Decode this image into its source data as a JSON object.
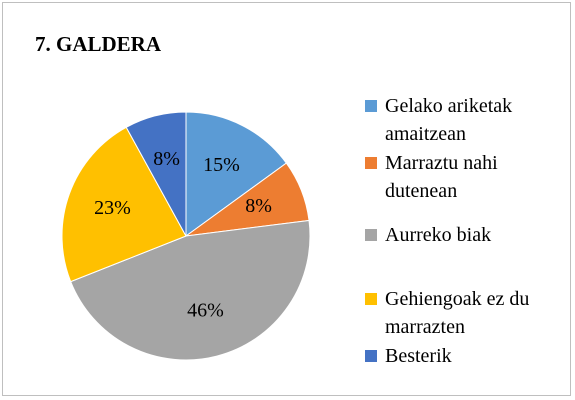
{
  "chart_data": {
    "type": "pie",
    "title": "7. GALDERA",
    "categories": [
      "Gelako ariketak amaitzean",
      "Marraztu nahi dutenean",
      "Aurreko biak",
      "Gehiengoak ez du marrazten",
      "Besterik"
    ],
    "values": [
      15,
      8,
      46,
      23,
      8
    ],
    "value_labels": [
      "15%",
      "8%",
      "46%",
      "23%",
      "8%"
    ],
    "colors": [
      "#5b9bd5",
      "#ed7d31",
      "#a5a5a5",
      "#ffc000",
      "#4472c4"
    ],
    "legend": "right"
  }
}
